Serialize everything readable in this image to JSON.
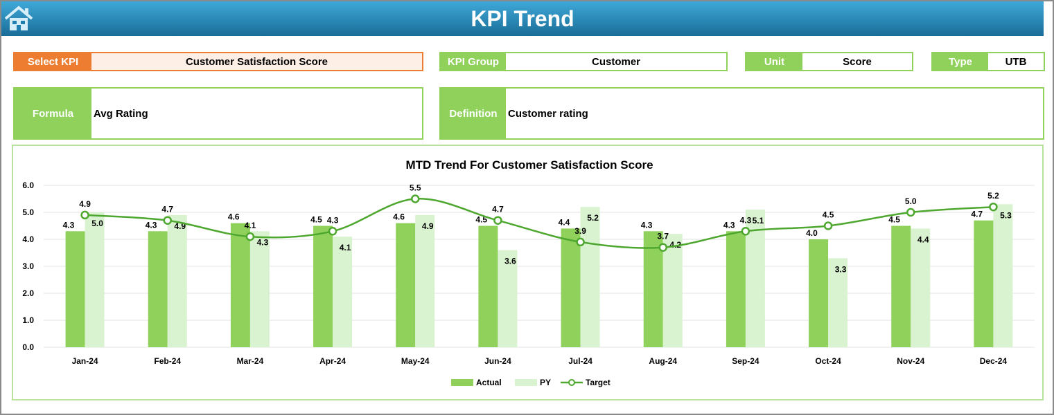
{
  "header": {
    "title": "KPI Trend",
    "icon": "home-icon"
  },
  "filters": {
    "select_kpi_label": "Select KPI",
    "select_kpi_value": "Customer Satisfaction Score",
    "kpi_group_label": "KPI Group",
    "kpi_group_value": "Customer",
    "unit_label": "Unit",
    "unit_value": "Score",
    "type_label": "Type",
    "type_value": "UTB",
    "formula_label": "Formula",
    "formula_value": "Avg Rating",
    "definition_label": "Definition",
    "definition_value": "Customer rating"
  },
  "colors": {
    "accent_orange": "#ed7d31",
    "green": "#8fd15a",
    "light_green": "#d9f2d0",
    "target": "#4ea72e",
    "header_blue": "#1f7fb0"
  },
  "chart_data": {
    "type": "bar",
    "title": "MTD Trend For Customer Satisfaction Score",
    "categories": [
      "Jan-24",
      "Feb-24",
      "Mar-24",
      "Apr-24",
      "May-24",
      "Jun-24",
      "Jul-24",
      "Aug-24",
      "Sep-24",
      "Oct-24",
      "Nov-24",
      "Dec-24"
    ],
    "ylim": [
      0,
      6
    ],
    "yticks": [
      "0.0",
      "1.0",
      "2.0",
      "3.0",
      "4.0",
      "5.0",
      "6.0"
    ],
    "grid": true,
    "legend": "bottom",
    "series": [
      {
        "name": "Actual",
        "type": "bar",
        "values": [
          4.3,
          4.3,
          4.6,
          4.5,
          4.6,
          4.5,
          4.4,
          4.3,
          4.3,
          4.0,
          4.5,
          4.7
        ]
      },
      {
        "name": "PY",
        "type": "bar",
        "values": [
          5.0,
          4.9,
          4.3,
          4.1,
          4.9,
          3.6,
          5.2,
          4.2,
          5.1,
          3.3,
          4.4,
          5.3
        ]
      },
      {
        "name": "Target",
        "type": "line",
        "values": [
          4.9,
          4.7,
          4.1,
          4.3,
          5.5,
          4.7,
          3.9,
          3.7,
          4.3,
          4.5,
          5.0,
          5.2
        ]
      }
    ]
  }
}
